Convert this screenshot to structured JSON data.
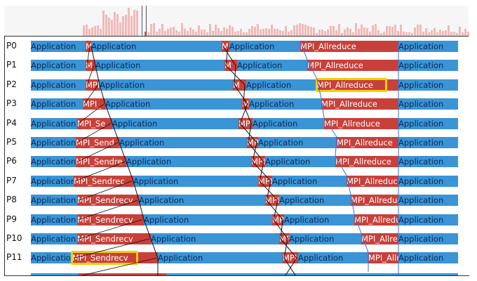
{
  "colors": {
    "application": "#3a94d6",
    "mpi": "#c8403a",
    "highlight": "#f2d000",
    "histogram": "#f2b9b9"
  },
  "processes": [
    {
      "label": "P0",
      "segments": [
        "Application",
        "M",
        "Application",
        "M",
        "Application",
        "MPI_Allreduce",
        "Application"
      ]
    },
    {
      "label": "P1",
      "segments": [
        "Application",
        "M",
        "Application",
        "M",
        "Application",
        "MPI_Allreduce",
        "Application"
      ]
    },
    {
      "label": "P2",
      "segments": [
        "Application",
        "MPI",
        "Application",
        "M",
        "Application",
        "MPI_Allreduce",
        "Application"
      ]
    },
    {
      "label": "P3",
      "segments": [
        "Application",
        "MPI_",
        "Application",
        "M",
        "Application",
        "MPI_Allreduce",
        "Application"
      ]
    },
    {
      "label": "P4",
      "segments": [
        "Application",
        "MPI_Se",
        "Application",
        "MP",
        "Application",
        "MPI_Allreduce",
        "Application"
      ]
    },
    {
      "label": "P5",
      "segments": [
        "Application",
        "MPI_Send",
        "Application",
        "MP",
        "Application",
        "MPI_Allreduce",
        "Application"
      ]
    },
    {
      "label": "P6",
      "segments": [
        "Application",
        "MPI_Sendre",
        "Application",
        "MPI",
        "Application",
        "MPI_Allreduce",
        "Application"
      ]
    },
    {
      "label": "P7",
      "segments": [
        "Application",
        "MPI_Sendrec",
        "Application",
        "MPI",
        "Application",
        "MPI_Allreduce",
        "Application"
      ]
    },
    {
      "label": "P8",
      "segments": [
        "Application",
        "MPI_Sendrecv",
        "Application",
        "MPI",
        "Application",
        "MPI_Allreduce",
        "Application"
      ]
    },
    {
      "label": "P9",
      "segments": [
        "Application",
        "MPI_Sendrecv",
        "Application",
        "MPI",
        "Application",
        "MPI_Allreduce",
        "Application"
      ]
    },
    {
      "label": "P10",
      "segments": [
        "Application",
        "MPI_Sendrecv",
        "Application",
        "MPI",
        "Application",
        "MPI_Allreduce",
        "Application"
      ]
    },
    {
      "label": "P11",
      "segments": [
        "Application",
        "MPI_Sendrecv",
        "Application",
        "MPI",
        "Application",
        "MPI_Allreduce",
        "Application"
      ]
    }
  ],
  "highlighted": [
    {
      "process": "P2",
      "label": "MPI_Allreduce"
    },
    {
      "process": "P11",
      "label": "MPI_Sendrecv"
    }
  ]
}
